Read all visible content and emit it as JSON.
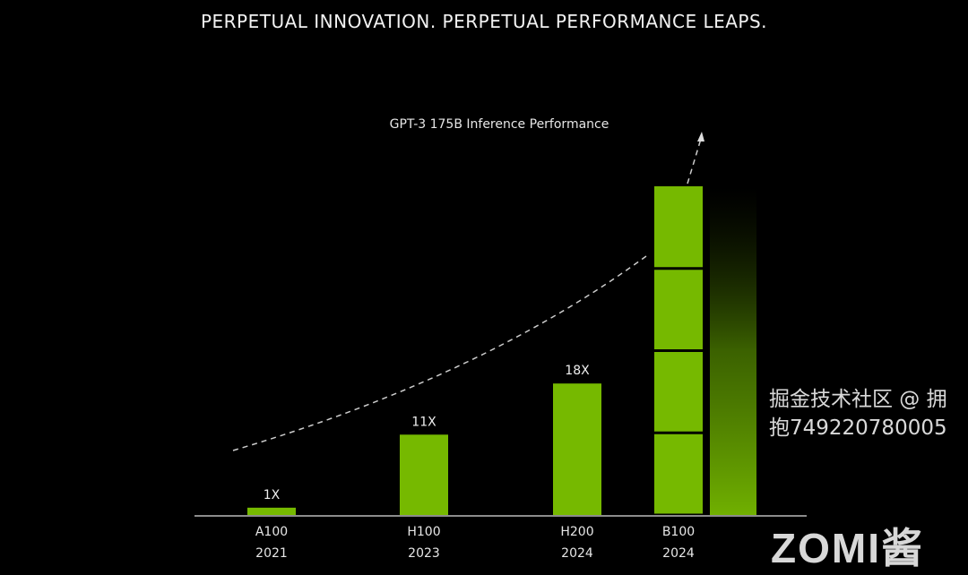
{
  "chart_data": {
    "type": "bar",
    "title": "PERPETUAL INNOVATION. PERPETUAL PERFORMANCE LEAPS.",
    "subtitle": "GPT-3 175B Inference Performance",
    "categories": [
      "A100",
      "H100",
      "H200",
      "B100"
    ],
    "years": [
      "2021",
      "2023",
      "2024",
      "2024"
    ],
    "values": [
      1,
      11,
      18,
      45
    ],
    "data_labels": [
      "1X",
      "11X",
      "18X",
      ""
    ],
    "ylim": [
      0,
      50
    ],
    "grid": false,
    "bar_color": "#76b900",
    "annotation": "dashed upward trend arrow"
  },
  "watermark": "掘金技术社区 @ 拥抱749220780005",
  "logo": "ZOMI酱"
}
